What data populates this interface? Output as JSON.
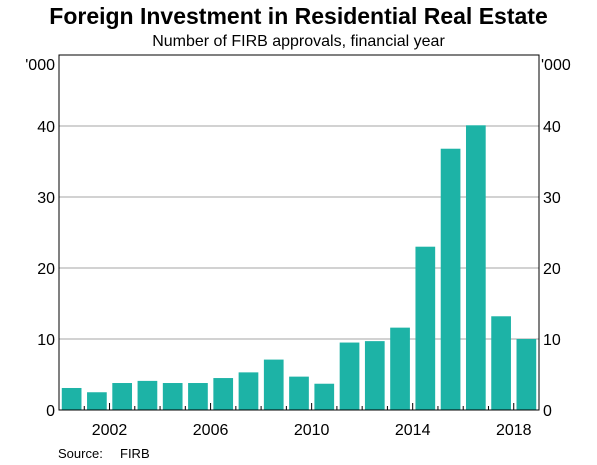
{
  "chart_data": {
    "type": "bar",
    "title": "Foreign Investment in Residential Real Estate",
    "subtitle": "Number of FIRB approvals, financial year",
    "unit_label": "'000",
    "xlabel": "",
    "ylabel": "",
    "x_tick_labels": [
      "2002",
      "2006",
      "2010",
      "2014",
      "2018"
    ],
    "x_tick_years": [
      2002,
      2006,
      2010,
      2014,
      2018
    ],
    "y_ticks": [
      0,
      10,
      20,
      30,
      40
    ],
    "ylim": [
      0,
      50
    ],
    "grid": true,
    "bar_color": "#1db3a6",
    "categories": [
      2000,
      2001,
      2002,
      2003,
      2004,
      2005,
      2006,
      2007,
      2008,
      2009,
      2010,
      2011,
      2012,
      2013,
      2014,
      2015,
      2016,
      2017,
      2018
    ],
    "values": [
      3.1,
      2.5,
      3.8,
      4.1,
      3.8,
      3.8,
      4.5,
      5.3,
      7.1,
      4.7,
      3.7,
      9.5,
      9.7,
      11.6,
      23.0,
      36.8,
      40.1,
      13.2,
      10.0
    ]
  },
  "source": {
    "label": "Source:",
    "value": "FIRB"
  }
}
